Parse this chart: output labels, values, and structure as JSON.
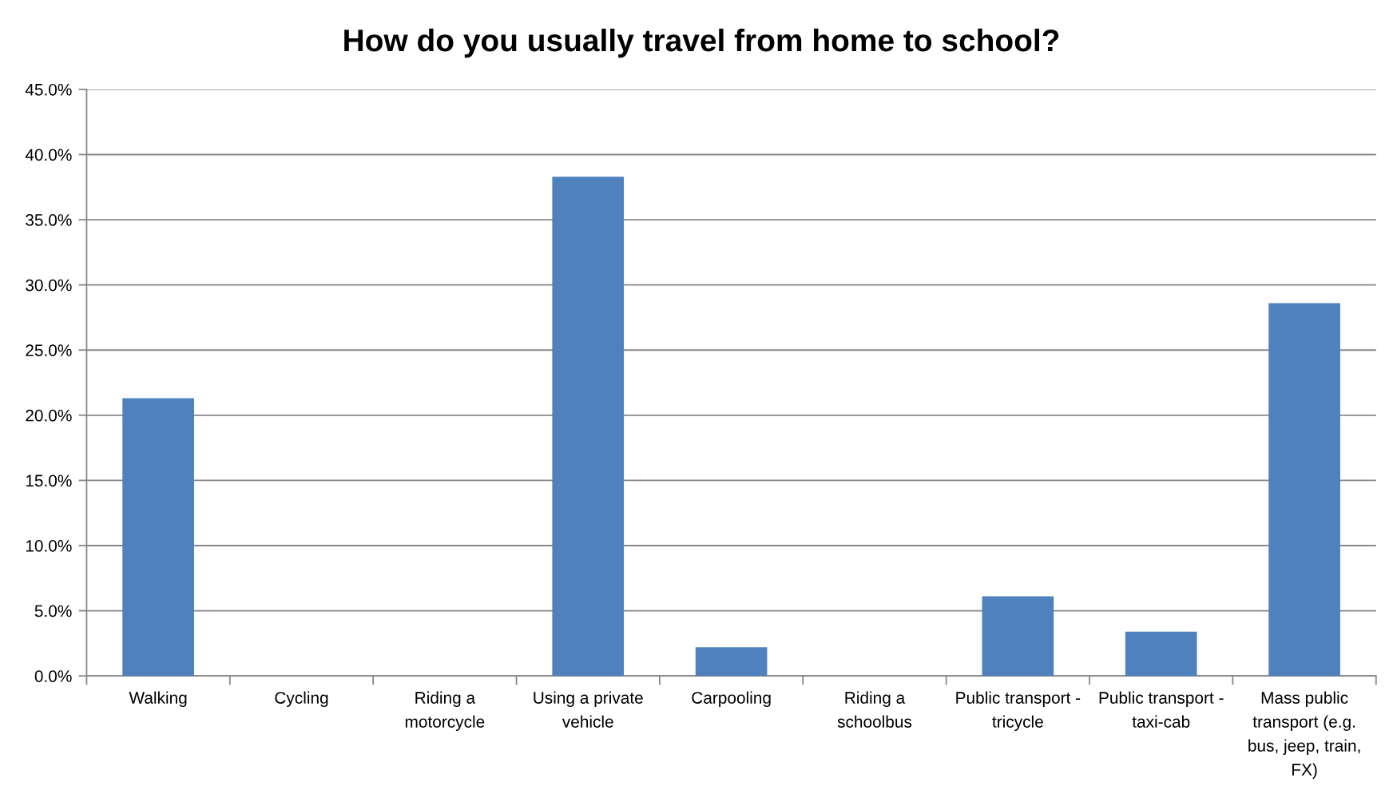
{
  "chart_data": {
    "type": "bar",
    "title": "How do you usually travel from home to school?",
    "categories": [
      "Walking",
      "Cycling",
      "Riding a\nmotorcycle",
      "Using a private\nvehicle",
      "Carpooling",
      "Riding a\nschoolbus",
      "Public transport -\ntricycle",
      "Public transport -\ntaxi-cab",
      "Mass public\ntransport (e.g.\nbus, jeep, train,\nFX)"
    ],
    "values": [
      21.3,
      0,
      0,
      38.3,
      2.2,
      0,
      6.1,
      3.4,
      28.6
    ],
    "color": "#4f81bd",
    "ylim": [
      0,
      45
    ],
    "yticks": [
      {
        "value": 0,
        "label": "0.0%"
      },
      {
        "value": 5,
        "label": "5.0%"
      },
      {
        "value": 10,
        "label": "10.0%"
      },
      {
        "value": 15,
        "label": "15.0%"
      },
      {
        "value": 20,
        "label": "20.0%"
      },
      {
        "value": 25,
        "label": "25.0%"
      },
      {
        "value": 30,
        "label": "30.0%"
      },
      {
        "value": 35,
        "label": "35.0%"
      },
      {
        "value": 40,
        "label": "40.0%"
      },
      {
        "value": 45,
        "label": "45.0%"
      }
    ],
    "grid": "y"
  }
}
